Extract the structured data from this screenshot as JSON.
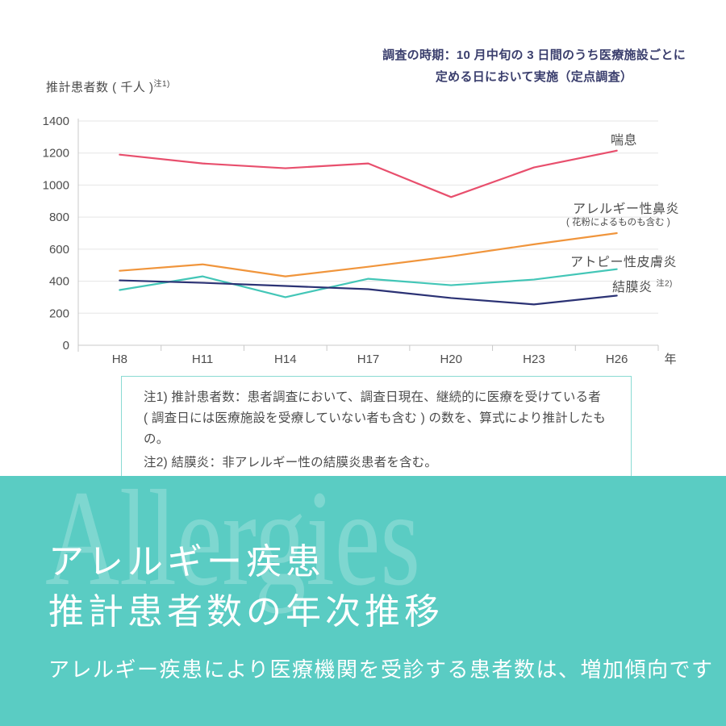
{
  "annotation": {
    "line1": "調査の時期：10 月中旬の 3 日間のうち医療施設ごとに",
    "line2": "定める日において実施（定点調査）"
  },
  "chart_data": {
    "type": "line",
    "ylabel": "推計患者数 ( 千人 )",
    "ylabel_note": "注1)",
    "categories": [
      "H8",
      "H11",
      "H14",
      "H17",
      "H20",
      "H23",
      "H26"
    ],
    "x_axis_suffix": "年",
    "ylim": [
      0,
      1400
    ],
    "ytick_step": 200,
    "grid": true,
    "legend_position": "right-of-lines",
    "series": [
      {
        "name": "喘息",
        "color": "#e84f6d",
        "values": [
          1190,
          1135,
          1105,
          1135,
          925,
          1110,
          1215
        ]
      },
      {
        "name": "アレルギー性鼻炎",
        "subname": "( 花粉によるものも含む )",
        "color": "#f0953c",
        "values": [
          465,
          505,
          430,
          490,
          555,
          630,
          700
        ]
      },
      {
        "name": "アトピー性皮膚炎",
        "color": "#43c6b7",
        "values": [
          345,
          430,
          300,
          415,
          375,
          410,
          475
        ]
      },
      {
        "name": "結膜炎",
        "name_note": "注2)",
        "color": "#2b3274",
        "values": [
          405,
          390,
          370,
          350,
          295,
          255,
          310
        ]
      }
    ],
    "axis_color": "#c9c9c9",
    "grid_color": "#e5e5e5",
    "tick_label_color": "#4d4d4d"
  },
  "notes": {
    "line1": "注1) 推計患者数：患者調査において、調査日現在、継続的に医療を受けている者",
    "line2": "( 調査日には医療施設を受療していない者も含む ) の数を、算式により推計したもの。",
    "line3": "注2) 結膜炎：非アレルギー性の結膜炎患者を含む。"
  },
  "hero": {
    "watermark": "Allergies",
    "title_line1": "アレルギー疾患",
    "title_line2": "推計患者数の年次推移",
    "subtitle": "アレルギー疾患により医療機関を受診する患者数は、増加傾向です",
    "bg_color": "#5accc3"
  }
}
